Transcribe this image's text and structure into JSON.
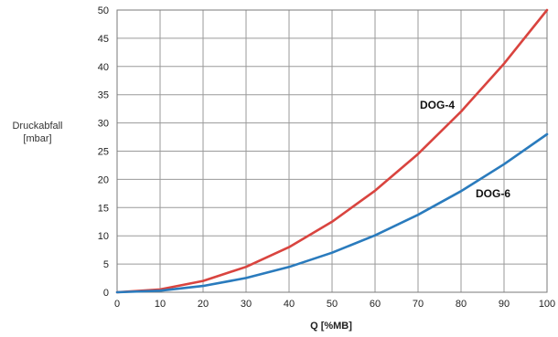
{
  "chart_data": {
    "type": "line",
    "xlabel": "Q [%MB]",
    "ylabel": [
      "Druckabfall",
      "[mbar]"
    ],
    "xlim": [
      0,
      100
    ],
    "ylim": [
      0,
      50
    ],
    "xticks": [
      0,
      10,
      20,
      30,
      40,
      50,
      60,
      70,
      80,
      90,
      100
    ],
    "yticks": [
      0,
      5,
      10,
      15,
      20,
      25,
      30,
      35,
      40,
      45,
      50
    ],
    "grid": true,
    "legend": "inline labels",
    "series": [
      {
        "name": "DOG-4",
        "color": "#d9443f",
        "x": [
          0,
          10,
          20,
          30,
          40,
          50,
          60,
          70,
          80,
          90,
          100
        ],
        "y": [
          0,
          0.5,
          2,
          4.5,
          8,
          12.5,
          18,
          24.5,
          32,
          40.5,
          50
        ]
      },
      {
        "name": "DOG-6",
        "color": "#2a7bbd",
        "x": [
          0,
          10,
          20,
          30,
          40,
          50,
          60,
          70,
          80,
          90,
          100
        ],
        "y": [
          0,
          0.28,
          1.12,
          2.52,
          4.48,
          7,
          10.08,
          13.72,
          17.92,
          22.68,
          28
        ]
      }
    ]
  }
}
